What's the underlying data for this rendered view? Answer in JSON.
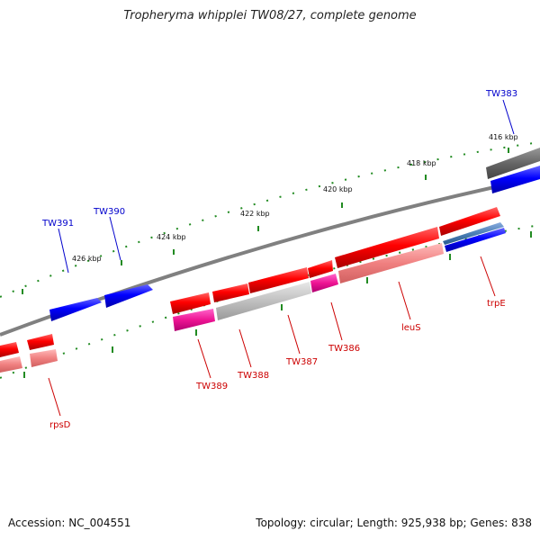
{
  "title": "Tropheryma whipplei TW08/27, complete genome",
  "footer": {
    "accession": "Accession: NC_004551",
    "topology": "Topology: circular; Length: 925,938 bp; Genes: 838"
  },
  "colors": {
    "forward_gene": "#0000ee",
    "reverse_gene": "#ee0000",
    "label_blue": "#0000cc",
    "label_red": "#cc0000",
    "tick_green": "#228b22",
    "backbone": "#808080"
  },
  "scale_labels": [
    "416 kbp",
    "418 kbp",
    "420 kbp",
    "422 kbp",
    "424 kbp",
    "426 kbp"
  ],
  "gene_labels": [
    "TW383",
    "TW390",
    "TW391",
    "trpE",
    "leuS",
    "TW386",
    "TW387",
    "TW388",
    "TW389",
    "rpsD"
  ]
}
